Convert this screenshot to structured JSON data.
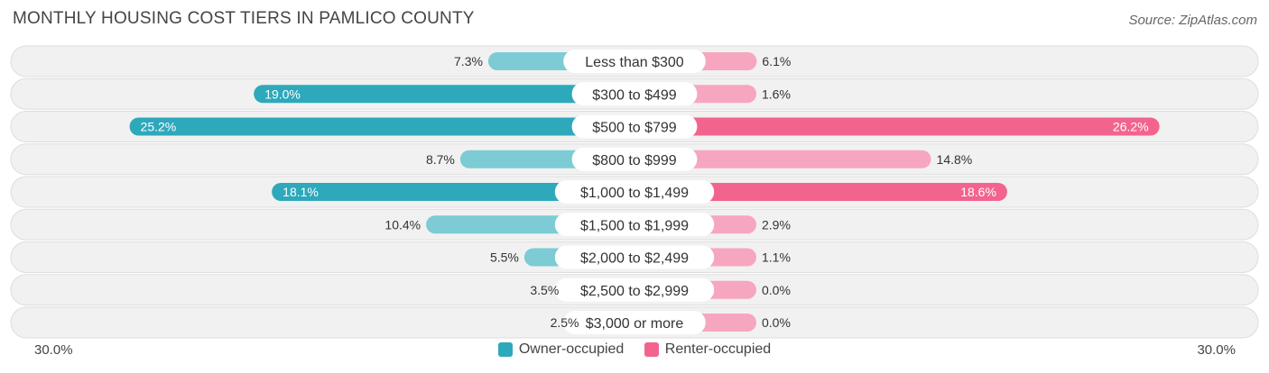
{
  "chart_data": {
    "type": "bar",
    "title": "MONTHLY HOUSING COST TIERS IN PAMLICO COUNTY",
    "source": "Source: ZipAtlas.com",
    "categories": [
      "Less than $300",
      "$300 to $499",
      "$500 to $799",
      "$800 to $999",
      "$1,000 to $1,499",
      "$1,500 to $1,999",
      "$2,000 to $2,499",
      "$2,500 to $2,999",
      "$3,000 or more"
    ],
    "series": [
      {
        "name": "Owner-occupied",
        "values": [
          7.3,
          19.0,
          25.2,
          8.7,
          18.1,
          10.4,
          5.5,
          3.5,
          2.5
        ],
        "labels": [
          "7.3%",
          "19.0%",
          "25.2%",
          "8.7%",
          "18.1%",
          "10.4%",
          "5.5%",
          "3.5%",
          "2.5%"
        ]
      },
      {
        "name": "Renter-occupied",
        "values": [
          6.1,
          1.6,
          26.2,
          14.8,
          18.6,
          2.9,
          1.1,
          0.0,
          0.0
        ],
        "labels": [
          "6.1%",
          "1.6%",
          "26.2%",
          "14.8%",
          "18.6%",
          "2.9%",
          "1.1%",
          "0.0%",
          "0.0%"
        ]
      }
    ],
    "axis": {
      "left_label": "30.0%",
      "right_label": "30.0%",
      "max": 30.0
    },
    "colors": {
      "owner_strong": "#2ea8bb",
      "owner_light": "#7dcbd4",
      "renter_strong": "#f2648e",
      "renter_light": "#f7a6c0",
      "row_bg": "#f1f1f1",
      "row_border": "#dddddd"
    },
    "legend_placement": "bottom-center"
  }
}
